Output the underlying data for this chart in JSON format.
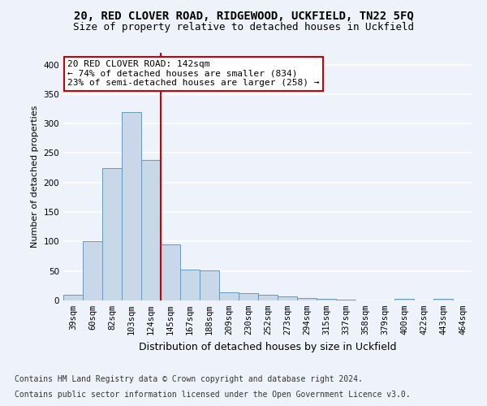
{
  "title1": "20, RED CLOVER ROAD, RIDGEWOOD, UCKFIELD, TN22 5FQ",
  "title2": "Size of property relative to detached houses in Uckfield",
  "xlabel": "Distribution of detached houses by size in Uckfield",
  "ylabel": "Number of detached properties",
  "categories": [
    "39sqm",
    "60sqm",
    "82sqm",
    "103sqm",
    "124sqm",
    "145sqm",
    "167sqm",
    "188sqm",
    "209sqm",
    "230sqm",
    "252sqm",
    "273sqm",
    "294sqm",
    "315sqm",
    "337sqm",
    "358sqm",
    "379sqm",
    "400sqm",
    "422sqm",
    "443sqm",
    "464sqm"
  ],
  "values": [
    10,
    101,
    225,
    319,
    238,
    95,
    53,
    51,
    14,
    13,
    10,
    7,
    4,
    3,
    2,
    0,
    0,
    3,
    0,
    3,
    0
  ],
  "bar_color": "#c8d8e8",
  "bar_edge_color": "#6699bb",
  "vline_x": 5.0,
  "vline_color": "#cc0000",
  "annotation_line1": "20 RED CLOVER ROAD: 142sqm",
  "annotation_line2": "← 74% of detached houses are smaller (834)",
  "annotation_line3": "23% of semi-detached houses are larger (258) →",
  "annotation_box_color": "white",
  "annotation_box_edge_color": "#cc0000",
  "ylim": [
    0,
    420
  ],
  "yticks": [
    0,
    50,
    100,
    150,
    200,
    250,
    300,
    350,
    400
  ],
  "footnote1": "Contains HM Land Registry data © Crown copyright and database right 2024.",
  "footnote2": "Contains public sector information licensed under the Open Government Licence v3.0.",
  "background_color": "#eef2fb",
  "grid_color": "#ffffff",
  "title1_fontsize": 10,
  "title2_fontsize": 9,
  "xlabel_fontsize": 9,
  "ylabel_fontsize": 8,
  "tick_fontsize": 7.5,
  "annotation_fontsize": 8,
  "footnote_fontsize": 7
}
